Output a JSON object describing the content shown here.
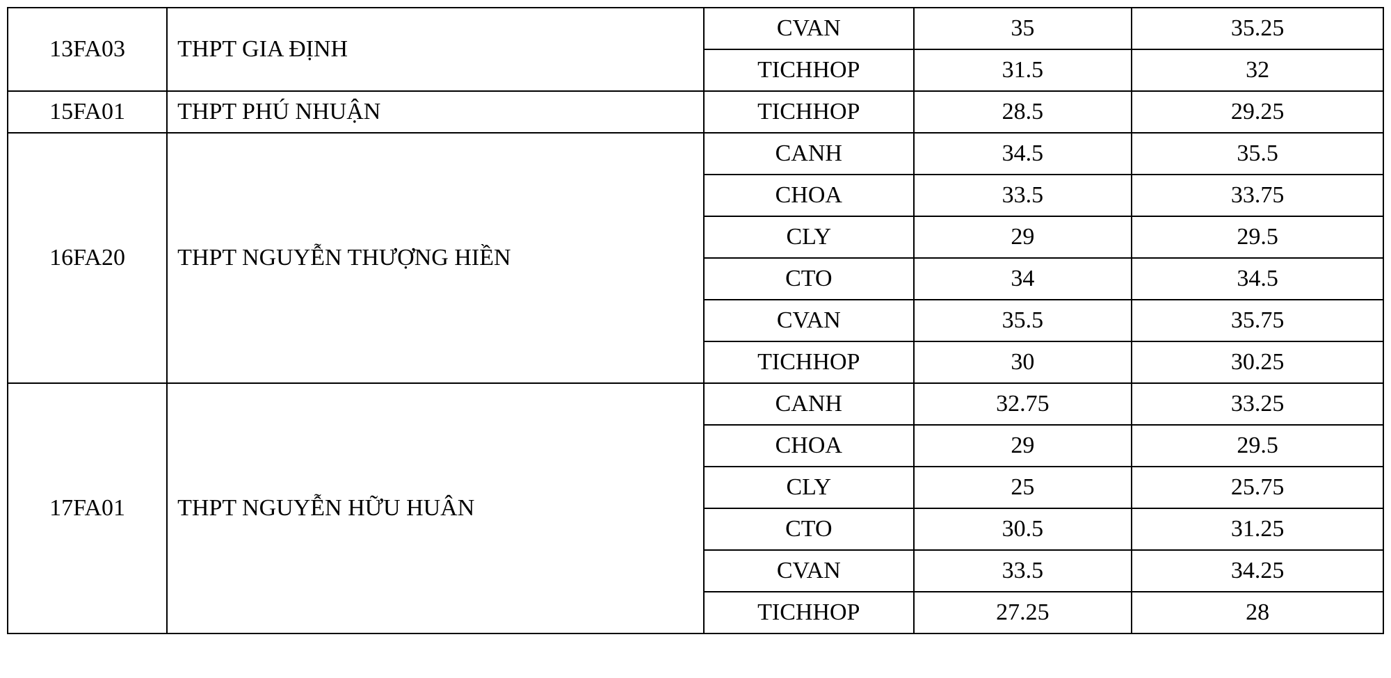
{
  "table": {
    "columns": {
      "code_width": 190,
      "school_width": 640,
      "subject_width": 250,
      "score1_width": 260,
      "score2_width": 300
    },
    "font_size": 34,
    "font_family": "Times New Roman",
    "border_color": "#000000",
    "background_color": "#ffffff",
    "text_color": "#000000",
    "groups": [
      {
        "code": "13FA03",
        "school": "THPT GIA ĐỊNH",
        "rows": [
          {
            "subject": "CVAN",
            "score1": "35",
            "score2": "35.25"
          },
          {
            "subject": "TICHHOP",
            "score1": "31.5",
            "score2": "32"
          }
        ]
      },
      {
        "code": "15FA01",
        "school": "THPT PHÚ NHUẬN",
        "rows": [
          {
            "subject": "TICHHOP",
            "score1": "28.5",
            "score2": "29.25"
          }
        ]
      },
      {
        "code": "16FA20",
        "school": "THPT NGUYỄN THƯỢNG HIỀN",
        "rows": [
          {
            "subject": "CANH",
            "score1": "34.5",
            "score2": "35.5"
          },
          {
            "subject": "CHOA",
            "score1": "33.5",
            "score2": "33.75"
          },
          {
            "subject": "CLY",
            "score1": "29",
            "score2": "29.5"
          },
          {
            "subject": "CTO",
            "score1": "34",
            "score2": "34.5"
          },
          {
            "subject": "CVAN",
            "score1": "35.5",
            "score2": "35.75"
          },
          {
            "subject": "TICHHOP",
            "score1": "30",
            "score2": "30.25"
          }
        ]
      },
      {
        "code": "17FA01",
        "school": "THPT NGUYỄN HỮU HUÂN",
        "rows": [
          {
            "subject": "CANH",
            "score1": "32.75",
            "score2": "33.25"
          },
          {
            "subject": "CHOA",
            "score1": "29",
            "score2": "29.5"
          },
          {
            "subject": "CLY",
            "score1": "25",
            "score2": "25.75"
          },
          {
            "subject": "CTO",
            "score1": "30.5",
            "score2": "31.25"
          },
          {
            "subject": "CVAN",
            "score1": "33.5",
            "score2": "34.25"
          },
          {
            "subject": "TICHHOP",
            "score1": "27.25",
            "score2": "28"
          }
        ]
      }
    ]
  }
}
